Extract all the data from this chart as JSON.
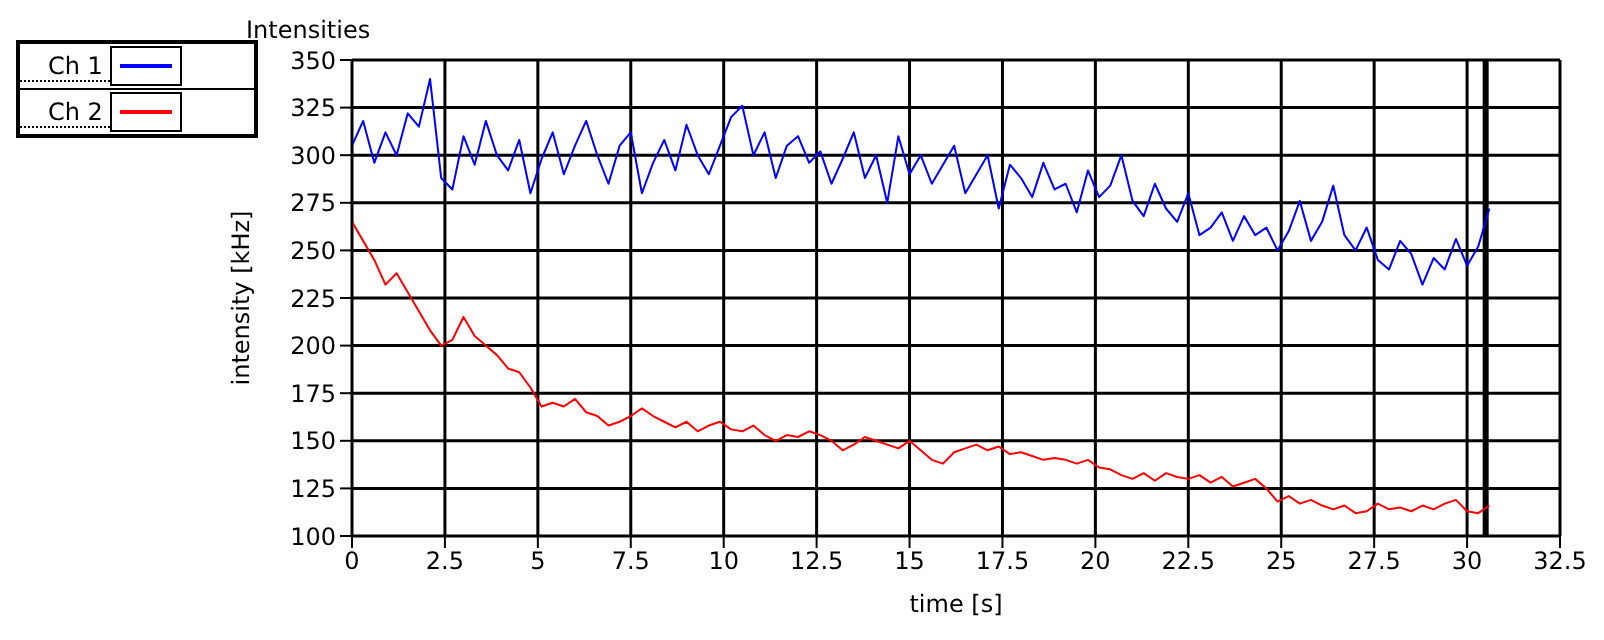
{
  "chart_data": {
    "type": "line",
    "title": "Intensities",
    "xlabel": "time [s]",
    "ylabel": "intensity [kHz]",
    "x": [
      0,
      0.3,
      0.6,
      0.9,
      1.2,
      1.5,
      1.8,
      2.1,
      2.4,
      2.7,
      3,
      3.3,
      3.6,
      3.9,
      4.2,
      4.5,
      4.8,
      5.1,
      5.4,
      5.7,
      6,
      6.3,
      6.6,
      6.9,
      7.2,
      7.5,
      7.8,
      8.1,
      8.4,
      8.7,
      9,
      9.3,
      9.6,
      9.9,
      10.2,
      10.5,
      10.8,
      11.1,
      11.4,
      11.7,
      12,
      12.3,
      12.6,
      12.9,
      13.2,
      13.5,
      13.8,
      14.1,
      14.4,
      14.7,
      15,
      15.3,
      15.6,
      15.9,
      16.2,
      16.5,
      16.8,
      17.1,
      17.4,
      17.7,
      18,
      18.3,
      18.6,
      18.9,
      19.2,
      19.5,
      19.8,
      20.1,
      20.4,
      20.7,
      21,
      21.3,
      21.6,
      21.9,
      22.2,
      22.5,
      22.8,
      23.1,
      23.4,
      23.7,
      24,
      24.3,
      24.6,
      24.9,
      25.2,
      25.5,
      25.8,
      26.1,
      26.4,
      26.7,
      27,
      27.3,
      27.6,
      27.9,
      28.2,
      28.5,
      28.8,
      29.1,
      29.4,
      29.7,
      30,
      30.3,
      30.6
    ],
    "series": [
      {
        "name": "Ch 1",
        "color": "#0000ff",
        "values": [
          305,
          318,
          296,
          312,
          300,
          322,
          315,
          340,
          288,
          282,
          310,
          295,
          318,
          300,
          292,
          308,
          280,
          298,
          312,
          290,
          305,
          318,
          300,
          285,
          305,
          312,
          280,
          296,
          308,
          292,
          316,
          300,
          290,
          305,
          320,
          326,
          300,
          312,
          288,
          305,
          310,
          296,
          302,
          285,
          298,
          312,
          288,
          300,
          275,
          310,
          290,
          300,
          285,
          295,
          305,
          280,
          290,
          300,
          272,
          295,
          288,
          278,
          296,
          282,
          285,
          270,
          292,
          278,
          284,
          300,
          276,
          268,
          285,
          272,
          265,
          280,
          258,
          262,
          270,
          255,
          268,
          258,
          262,
          250,
          260,
          276,
          255,
          265,
          284,
          258,
          250,
          262,
          245,
          240,
          255,
          248,
          232,
          246,
          240,
          256,
          242,
          252,
          272
        ]
      },
      {
        "name": "Ch 2",
        "color": "#ff0000",
        "values": [
          265,
          255,
          245,
          232,
          238,
          228,
          218,
          208,
          200,
          203,
          215,
          205,
          200,
          195,
          188,
          186,
          178,
          168,
          170,
          168,
          172,
          165,
          163,
          158,
          160,
          163,
          167,
          163,
          160,
          157,
          160,
          155,
          158,
          160,
          156,
          155,
          158,
          153,
          150,
          153,
          152,
          155,
          153,
          150,
          145,
          148,
          152,
          150,
          148,
          146,
          150,
          145,
          140,
          138,
          144,
          146,
          148,
          145,
          147,
          143,
          144,
          142,
          140,
          141,
          140,
          138,
          140,
          136,
          135,
          132,
          130,
          133,
          129,
          133,
          131,
          130,
          132,
          128,
          131,
          126,
          128,
          130,
          125,
          118,
          121,
          117,
          119,
          116,
          114,
          116,
          112,
          113,
          117,
          114,
          115,
          113,
          116,
          114,
          117,
          119,
          113,
          112,
          116
        ]
      }
    ],
    "xlim": [
      0,
      32.5
    ],
    "xticks": [
      0,
      2.5,
      5,
      7.5,
      10,
      12.5,
      15,
      17.5,
      20,
      22.5,
      25,
      27.5,
      30,
      32.5
    ],
    "ylim": [
      100,
      350
    ],
    "yticks": [
      100,
      125,
      150,
      175,
      200,
      225,
      250,
      275,
      300,
      325,
      350
    ],
    "ref_lines": [
      {
        "axis": "x",
        "value": 30.5,
        "color": "#000000"
      }
    ],
    "grid": true,
    "legend": "top left",
    "marker": "none",
    "line_style": "solid"
  }
}
